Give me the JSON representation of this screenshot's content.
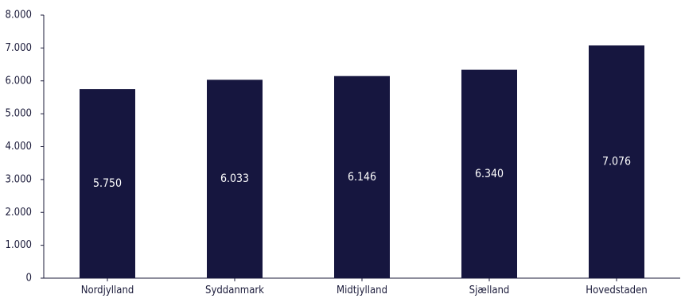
{
  "chart_data": {
    "type": "bar",
    "categories": [
      "Nordjylland",
      "Syddanmark",
      "Midtjylland",
      "Sjælland",
      "Hovedstaden"
    ],
    "values": [
      5750,
      6033,
      6146,
      6340,
      7076
    ],
    "value_labels": [
      "5.750",
      "6.033",
      "6.146",
      "6.340",
      "7.076"
    ],
    "title": "",
    "xlabel": "",
    "ylabel": "",
    "ylim": [
      0,
      8000
    ],
    "y_ticks": [
      0,
      1000,
      2000,
      3000,
      4000,
      5000,
      6000,
      7000,
      8000
    ],
    "y_tick_labels": [
      "0",
      "1.000",
      "2.000",
      "3.000",
      "4.000",
      "5.000",
      "6.000",
      "7.000",
      "8.000"
    ],
    "grid": false,
    "legend": "none",
    "bar_color": "#16163f"
  }
}
